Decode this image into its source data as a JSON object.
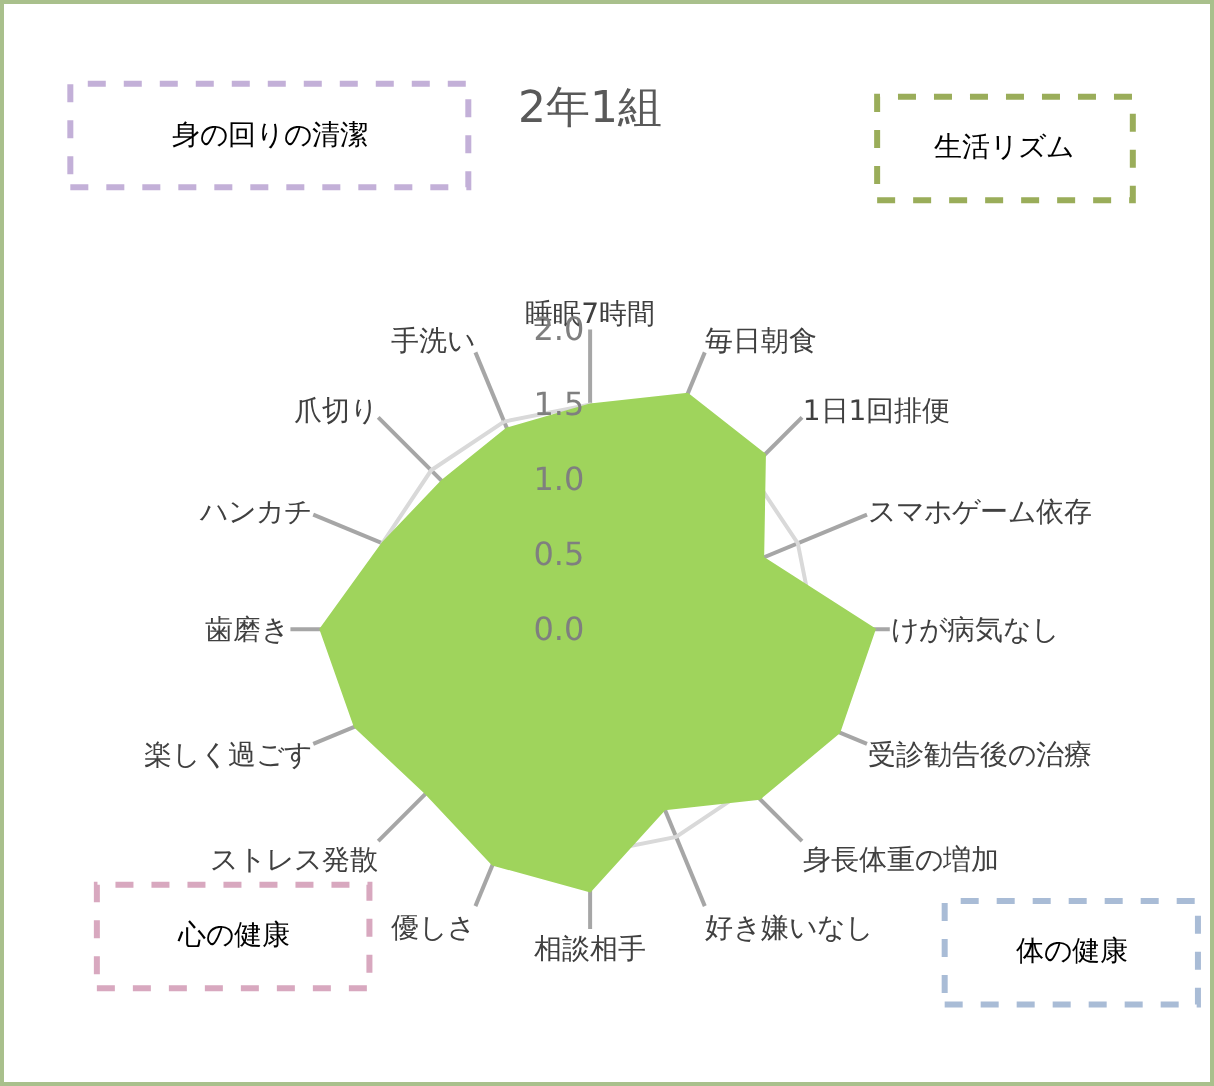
{
  "chart_data": {
    "type": "radar",
    "title": "2年1組",
    "categories": [
      "睡眠7時間",
      "毎日朝食",
      "1日1回排便",
      "スマホゲーム依存",
      "けが病気なし",
      "受診勧告後の治療",
      "身長体重の増加",
      "好き嫌いなし",
      "相談相手",
      "優しさ",
      "ストレス発散",
      "楽しく過ごす",
      "歯磨き",
      "ハンカチ",
      "爪切り",
      "手洗い"
    ],
    "series": [
      {
        "color": "#9fd45c",
        "values": [
          1.5,
          1.7,
          1.65,
          1.25,
          1.9,
          1.8,
          1.6,
          1.3,
          1.75,
          1.7,
          1.55,
          1.7,
          1.8,
          1.5,
          1.4,
          1.45
        ]
      }
    ],
    "ylim": [
      0,
      2
    ],
    "yticks": [
      {
        "value": 0,
        "label": "0.0"
      },
      {
        "value": 0.5,
        "label": "0.5"
      },
      {
        "value": 1,
        "label": "1.0"
      },
      {
        "value": 1.5,
        "label": "1.5"
      },
      {
        "value": 2,
        "label": "2.0"
      }
    ],
    "grid": true,
    "legend": false,
    "marker": "none",
    "annotations": [
      "身の回りの清潔",
      "生活リズム",
      "心の健康",
      "体の健康"
    ]
  }
}
